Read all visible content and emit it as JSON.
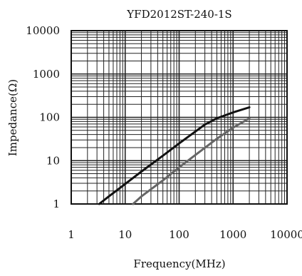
{
  "chart_data": {
    "type": "line",
    "title": "YFD2012ST-240-1S",
    "xlabel": "Frequency(MHz)",
    "ylabel": "Impedance(Ω)",
    "x_scale": "log",
    "y_scale": "log",
    "xlim": [
      1,
      10000
    ],
    "ylim": [
      1,
      10000
    ],
    "x_ticks": [
      "1",
      "10",
      "100",
      "1000",
      "10000"
    ],
    "y_ticks": [
      "10000",
      "1000",
      "100",
      "10",
      "1"
    ],
    "grid": true,
    "series": [
      {
        "color": "#111111",
        "x": [
          3.3,
          5,
          10,
          20,
          50,
          100,
          200,
          300,
          500,
          1000,
          2000
        ],
        "y": [
          1,
          1.5,
          2.9,
          5.6,
          13,
          25,
          47,
          68,
          95,
          130,
          170
        ]
      },
      {
        "color": "#666666",
        "x": [
          14,
          20,
          50,
          100,
          200,
          500,
          1000,
          2000
        ],
        "y": [
          1,
          1.5,
          3.5,
          7,
          13.5,
          32,
          58,
          95
        ]
      }
    ]
  }
}
